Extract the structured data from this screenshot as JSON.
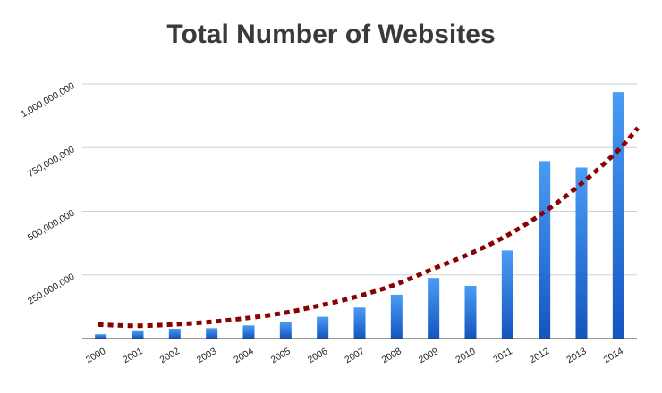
{
  "chart_data": {
    "type": "bar",
    "title": "Total Number of Websites",
    "xlabel": "",
    "ylabel": "",
    "categories": [
      "2000",
      "2001",
      "2002",
      "2003",
      "2004",
      "2005",
      "2006",
      "2007",
      "2008",
      "2009",
      "2010",
      "2011",
      "2012",
      "2013",
      "2014"
    ],
    "series": [
      {
        "values": [
          17000000,
          29000000,
          38800000,
          40900000,
          51600000,
          64800000,
          85500000,
          121900000,
          172300000,
          238000000,
          207000000,
          346000000,
          697000000,
          672000000,
          968000000
        ]
      }
    ],
    "trendline": {
      "type": "exponential",
      "style": "dotted",
      "color": "#8b0000",
      "values": [
        55000000,
        50000000,
        55000000,
        65000000,
        80000000,
        100000000,
        130000000,
        165000000,
        210000000,
        270000000,
        330000000,
        400000000,
        490000000,
        600000000,
        730000000
      ]
    },
    "ylim": [
      0,
      1000000000
    ],
    "yticks": [
      {
        "value": 250000000,
        "label": "250,000,000"
      },
      {
        "value": 500000000,
        "label": "500,000,000"
      },
      {
        "value": 750000000,
        "label": "750,000,000"
      },
      {
        "value": 1000000000,
        "label": "1,000,000,000"
      }
    ],
    "grid": true,
    "colors": {
      "bar_top": "#4a9cf5",
      "bar_bottom": "#1455c0",
      "trend": "#8b0000",
      "grid": "#cfcfcf"
    }
  }
}
